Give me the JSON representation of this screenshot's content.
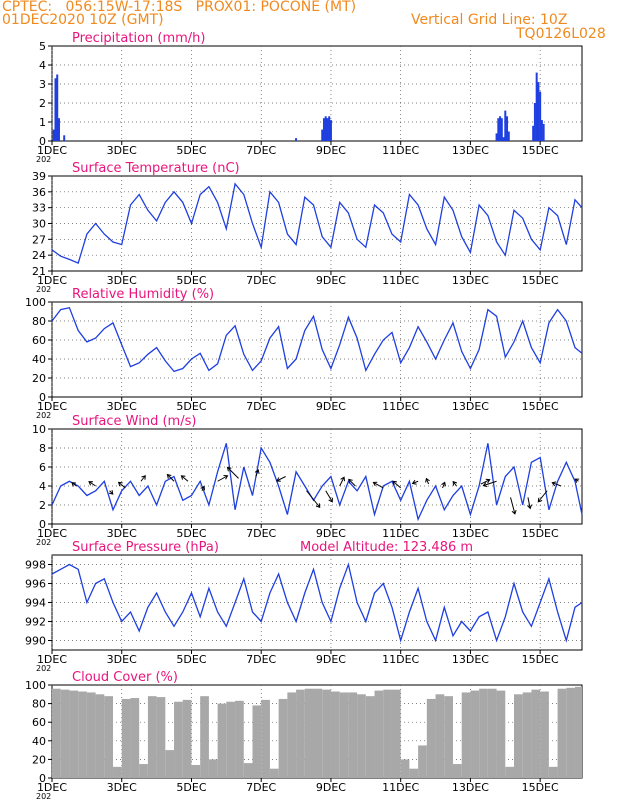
{
  "header": {
    "line1": "CPTEC:   056:15W-17:18S   PROX01: POCONE (MT)",
    "line2_left": "01DEC2020 10Z (GMT)",
    "line2_right": "Vertical Grid Line: 10Z",
    "line3_right": "TQ0126L028"
  },
  "colors": {
    "header": "#f08a1e",
    "panel_title": "#e8157d",
    "line": "#1f3fe0",
    "cloud": "#a8a8a8",
    "wind_arrow": "#000000"
  },
  "x_axis": {
    "tick_labels": [
      "1DEC",
      "3DEC",
      "5DEC",
      "7DEC",
      "9DEC",
      "11DEC",
      "13DEC",
      "15DEC"
    ],
    "tick_days": [
      0,
      2,
      4,
      6,
      8,
      10,
      12,
      14
    ],
    "range_days": [
      0,
      15.2
    ],
    "year_fragment": "202"
  },
  "chart_data": [
    {
      "type": "bar",
      "title": "Precipitation (mm/h)",
      "ylim": [
        0,
        5
      ],
      "yticks": [
        0,
        1,
        2,
        3,
        4,
        5
      ],
      "x": [
        0.05,
        0.1,
        0.15,
        0.2,
        0.35,
        7.0,
        7.75,
        7.8,
        7.85,
        7.9,
        7.95,
        8.0,
        12.75,
        12.8,
        12.85,
        12.9,
        12.95,
        13.0,
        13.05,
        13.1,
        13.8,
        13.85,
        13.9,
        13.95,
        14.0,
        14.05,
        14.1
      ],
      "values": [
        0.6,
        3.3,
        3.5,
        1.2,
        0.3,
        0.15,
        0.6,
        1.2,
        1.3,
        1.2,
        1.3,
        1.1,
        0.4,
        1.2,
        1.3,
        1.2,
        0.2,
        1.6,
        1.3,
        0.5,
        0.8,
        2.0,
        3.6,
        3.1,
        2.6,
        1.1,
        0.9
      ]
    },
    {
      "type": "line",
      "title": "Surface Temperature (nC)",
      "ylim": [
        21,
        39
      ],
      "yticks": [
        21,
        24,
        27,
        30,
        33,
        36,
        39
      ],
      "x": [
        0,
        0.25,
        0.5,
        0.75,
        1.0,
        1.25,
        1.5,
        1.75,
        2.0,
        2.25,
        2.5,
        2.75,
        3.0,
        3.25,
        3.5,
        3.75,
        4.0,
        4.25,
        4.5,
        4.75,
        5.0,
        5.25,
        5.5,
        5.75,
        6.0,
        6.25,
        6.5,
        6.75,
        7.0,
        7.25,
        7.5,
        7.75,
        8.0,
        8.25,
        8.5,
        8.75,
        9.0,
        9.25,
        9.5,
        9.75,
        10.0,
        10.25,
        10.5,
        10.75,
        11.0,
        11.25,
        11.5,
        11.75,
        12.0,
        12.25,
        12.5,
        12.75,
        13.0,
        13.25,
        13.5,
        13.75,
        14.0,
        14.25,
        14.5,
        14.75,
        15.0,
        15.2
      ],
      "values": [
        25.0,
        23.8,
        23.2,
        22.5,
        28.0,
        30.0,
        28.0,
        26.5,
        26.0,
        33.5,
        35.5,
        32.5,
        30.5,
        34.0,
        36.0,
        34.0,
        30.0,
        35.5,
        37.0,
        34.0,
        29.0,
        37.5,
        35.5,
        30.0,
        25.5,
        36.0,
        34.0,
        28.0,
        26.0,
        35.0,
        33.5,
        27.5,
        25.5,
        34.0,
        32.0,
        27.0,
        25.5,
        33.5,
        32.0,
        28.0,
        26.5,
        35.5,
        33.5,
        29.0,
        26.0,
        35.0,
        32.5,
        27.5,
        24.5,
        33.5,
        31.5,
        26.5,
        24.0,
        32.5,
        31.0,
        27.0,
        25.0,
        33.0,
        31.5,
        26.0,
        34.5,
        33.0
      ]
    },
    {
      "type": "line",
      "title": "Relative Humidity (%)",
      "ylim": [
        0,
        100
      ],
      "yticks": [
        0,
        20,
        40,
        60,
        80,
        100
      ],
      "x": [
        0,
        0.25,
        0.5,
        0.75,
        1.0,
        1.25,
        1.5,
        1.75,
        2.0,
        2.25,
        2.5,
        2.75,
        3.0,
        3.25,
        3.5,
        3.75,
        4.0,
        4.25,
        4.5,
        4.75,
        5.0,
        5.25,
        5.5,
        5.75,
        6.0,
        6.25,
        6.5,
        6.75,
        7.0,
        7.25,
        7.5,
        7.75,
        8.0,
        8.25,
        8.5,
        8.75,
        9.0,
        9.25,
        9.5,
        9.75,
        10.0,
        10.25,
        10.5,
        10.75,
        11.0,
        11.25,
        11.5,
        11.75,
        12.0,
        12.25,
        12.5,
        12.75,
        13.0,
        13.25,
        13.5,
        13.75,
        14.0,
        14.25,
        14.5,
        14.75,
        15.0,
        15.2
      ],
      "values": [
        80,
        92,
        94,
        70,
        58,
        62,
        72,
        78,
        55,
        32,
        36,
        45,
        52,
        38,
        27,
        30,
        40,
        46,
        28,
        35,
        65,
        75,
        45,
        28,
        38,
        62,
        74,
        30,
        40,
        70,
        85,
        50,
        30,
        55,
        84,
        62,
        28,
        45,
        60,
        68,
        36,
        52,
        74,
        58,
        40,
        60,
        78,
        48,
        30,
        50,
        92,
        85,
        42,
        58,
        80,
        52,
        36,
        78,
        92,
        80,
        52,
        46
      ]
    },
    {
      "type": "line",
      "title": "Surface Wind (m/s)",
      "ylim": [
        0,
        10
      ],
      "yticks": [
        0,
        2,
        4,
        6,
        8,
        10
      ],
      "x": [
        0,
        0.25,
        0.5,
        0.75,
        1.0,
        1.25,
        1.5,
        1.75,
        2.0,
        2.25,
        2.5,
        2.75,
        3.0,
        3.25,
        3.5,
        3.75,
        4.0,
        4.25,
        4.5,
        4.75,
        5.0,
        5.25,
        5.5,
        5.75,
        6.0,
        6.25,
        6.5,
        6.75,
        7.0,
        7.25,
        7.5,
        7.75,
        8.0,
        8.25,
        8.5,
        8.75,
        9.0,
        9.25,
        9.5,
        9.75,
        10.0,
        10.25,
        10.5,
        10.75,
        11.0,
        11.25,
        11.5,
        11.75,
        12.0,
        12.25,
        12.5,
        12.75,
        13.0,
        13.25,
        13.5,
        13.75,
        14.0,
        14.25,
        14.5,
        14.75,
        15.0,
        15.2
      ],
      "values": [
        2.0,
        4.0,
        4.5,
        4.0,
        3.0,
        3.5,
        4.5,
        1.5,
        3.5,
        4.5,
        3.0,
        4.0,
        2.0,
        4.5,
        5.0,
        2.5,
        3.0,
        4.5,
        2.0,
        5.5,
        8.5,
        1.5,
        6.0,
        3.0,
        8.0,
        6.5,
        4.0,
        1.0,
        5.5,
        4.0,
        2.5,
        4.0,
        5.0,
        2.0,
        4.5,
        3.5,
        5.0,
        1.0,
        4.0,
        4.5,
        2.5,
        4.5,
        0.5,
        2.5,
        4.0,
        1.5,
        3.0,
        4.0,
        1.0,
        4.0,
        8.5,
        2.0,
        5.0,
        6.0,
        2.0,
        6.5,
        7.0,
        1.5,
        4.5,
        6.5,
        4.5,
        1.0
      ],
      "arrows": {
        "x": [
          0.7,
          1.25,
          1.65,
          2.1,
          2.55,
          3.5,
          3.9,
          4.3,
          4.75,
          5.35,
          5.85,
          6.7,
          7.3,
          7.85,
          8.25,
          8.7,
          9.5,
          10.0,
          10.5,
          10.8,
          11.2,
          11.6,
          12.3,
          12.75,
          13.15,
          13.65,
          14.2,
          14.6,
          15.1
        ],
        "y": [
          4.0,
          4.0,
          3.5,
          3.8,
          4.5,
          4.5,
          4.5,
          3.5,
          4.5,
          4.8,
          5.0,
          5.0,
          3.5,
          3.5,
          4.0,
          4.0,
          3.8,
          3.8,
          4.5,
          4.2,
          3.8,
          4.0,
          4.2,
          4.5,
          2.8,
          2.8,
          3.5,
          4.0,
          4.5
        ],
        "u": [
          -0.4,
          -0.6,
          0.3,
          -0.6,
          0.4,
          -0.6,
          -0.6,
          0.2,
          0.9,
          -1.0,
          0.2,
          -0.8,
          1.2,
          0.6,
          0.4,
          -0.6,
          -0.9,
          -0.7,
          -0.5,
          -0.2,
          0.2,
          -0.3,
          0.8,
          -1.2,
          0.4,
          0.2,
          -0.8,
          -0.8,
          -0.3
        ],
        "v": [
          0.3,
          0.4,
          -0.3,
          0.5,
          0.5,
          0.6,
          0.5,
          0.4,
          0.5,
          1.0,
          0.6,
          -0.4,
          -1.5,
          -1.0,
          0.8,
          0.6,
          0.5,
          0.6,
          -0.2,
          0.5,
          0.5,
          0.4,
          0.4,
          -0.4,
          -1.5,
          -1.0,
          -1.0,
          0.3,
          0.2
        ]
      }
    },
    {
      "type": "line",
      "title": "Surface Pressure (hPa)",
      "annotation": "Model Altitude: 123.486  m",
      "ylim": [
        989,
        999
      ],
      "yticks": [
        990,
        992,
        994,
        996,
        998
      ],
      "x": [
        0,
        0.25,
        0.5,
        0.75,
        1.0,
        1.25,
        1.5,
        1.75,
        2.0,
        2.25,
        2.5,
        2.75,
        3.0,
        3.25,
        3.5,
        3.75,
        4.0,
        4.25,
        4.5,
        4.75,
        5.0,
        5.25,
        5.5,
        5.75,
        6.0,
        6.25,
        6.5,
        6.75,
        7.0,
        7.25,
        7.5,
        7.75,
        8.0,
        8.25,
        8.5,
        8.75,
        9.0,
        9.25,
        9.5,
        9.75,
        10.0,
        10.25,
        10.5,
        10.75,
        11.0,
        11.25,
        11.5,
        11.75,
        12.0,
        12.25,
        12.5,
        12.75,
        13.0,
        13.25,
        13.5,
        13.75,
        14.0,
        14.25,
        14.5,
        14.75,
        15.0,
        15.2
      ],
      "values": [
        997.0,
        997.5,
        998.0,
        997.5,
        994.0,
        996.0,
        996.5,
        994.0,
        992.0,
        993.0,
        991.0,
        993.5,
        995.0,
        993.0,
        991.5,
        993.0,
        995.0,
        992.5,
        995.5,
        993.0,
        991.5,
        994.0,
        996.5,
        993.0,
        992.0,
        995.0,
        997.0,
        994.0,
        992.0,
        995.0,
        997.5,
        994.0,
        992.0,
        995.5,
        998.0,
        994.0,
        992.0,
        995.0,
        996.0,
        993.5,
        990.0,
        993.0,
        995.5,
        992.0,
        990.0,
        993.5,
        990.5,
        992.0,
        991.0,
        992.5,
        993.0,
        990.0,
        992.5,
        996.0,
        993.0,
        991.5,
        994.0,
        996.5,
        993.0,
        990.0,
        993.5,
        994.0
      ]
    },
    {
      "type": "bar",
      "title": "Cloud Cover (%)",
      "ylim": [
        0,
        100
      ],
      "yticks": [
        0,
        20,
        40,
        60,
        80,
        100
      ],
      "x": [
        0,
        0.25,
        0.5,
        0.75,
        1.0,
        1.25,
        1.5,
        1.75,
        2.0,
        2.25,
        2.5,
        2.75,
        3.0,
        3.25,
        3.5,
        3.75,
        4.0,
        4.25,
        4.5,
        4.75,
        5.0,
        5.25,
        5.5,
        5.75,
        6.0,
        6.25,
        6.5,
        6.75,
        7.0,
        7.25,
        7.5,
        7.75,
        8.0,
        8.25,
        8.5,
        8.75,
        9.0,
        9.25,
        9.5,
        9.75,
        10.0,
        10.25,
        10.5,
        10.75,
        11.0,
        11.25,
        11.5,
        11.75,
        12.0,
        12.25,
        12.5,
        12.75,
        13.0,
        13.25,
        13.5,
        13.75,
        14.0,
        14.25,
        14.5,
        14.75,
        15.0,
        15.2
      ],
      "values": [
        96,
        95,
        94,
        93,
        92,
        90,
        88,
        12,
        85,
        86,
        15,
        88,
        87,
        30,
        82,
        84,
        14,
        88,
        20,
        80,
        82,
        83,
        16,
        78,
        84,
        10,
        85,
        92,
        95,
        96,
        96,
        95,
        93,
        92,
        92,
        90,
        88,
        94,
        95,
        95,
        20,
        10,
        35,
        85,
        90,
        88,
        15,
        92,
        94,
        96,
        96,
        94,
        12,
        90,
        92,
        95,
        93,
        12,
        96,
        97,
        98,
        96
      ]
    }
  ]
}
